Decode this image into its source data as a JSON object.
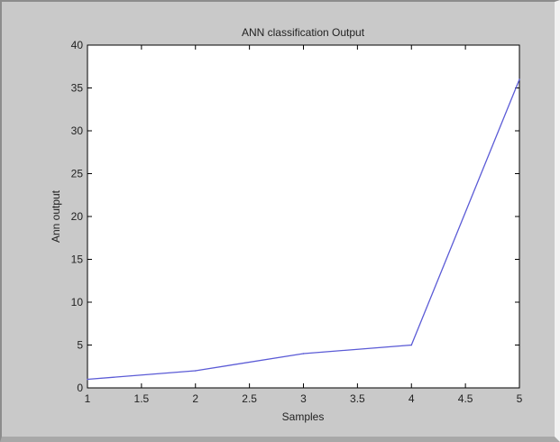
{
  "chart_data": {
    "type": "line",
    "title": "ANN classification Output",
    "xlabel": "Samples",
    "ylabel": "Ann output",
    "xlim": [
      1,
      5
    ],
    "ylim": [
      0,
      40
    ],
    "xticks": [
      1,
      1.5,
      2,
      2.5,
      3,
      3.5,
      4,
      4.5,
      5
    ],
    "xtick_labels": [
      "1",
      "1.5",
      "2",
      "2.5",
      "3",
      "3.5",
      "4",
      "4.5",
      "5"
    ],
    "yticks": [
      0,
      5,
      10,
      15,
      20,
      25,
      30,
      35,
      40
    ],
    "ytick_labels": [
      "0",
      "5",
      "10",
      "15",
      "20",
      "25",
      "30",
      "35",
      "40"
    ],
    "grid": false,
    "series": [
      {
        "color": "#5b5bd6",
        "x": [
          1,
          2,
          3,
          4,
          5
        ],
        "y": [
          1,
          2,
          4,
          5,
          36
        ]
      }
    ]
  },
  "colors": {
    "window_background": "#c9c9c9",
    "plot_background": "#ffffff",
    "line": "#5b5bd6"
  }
}
